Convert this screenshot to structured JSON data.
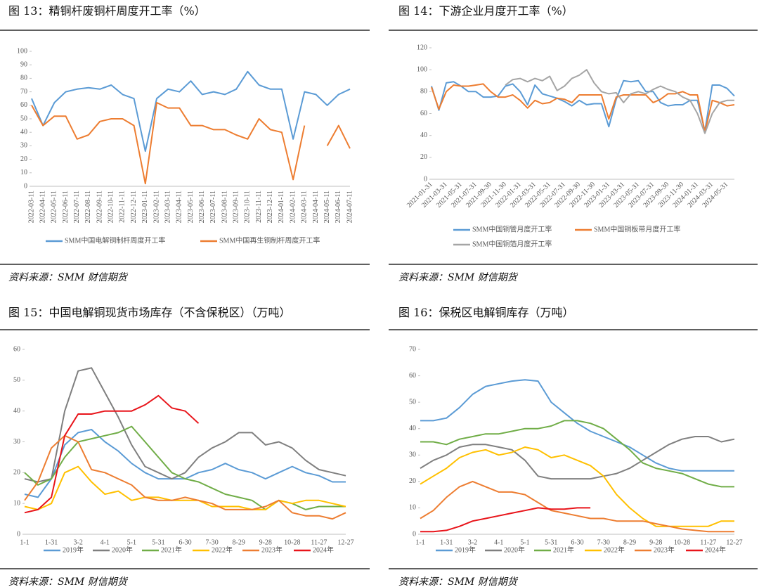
{
  "chart_data": [
    {
      "type": "line",
      "title": "图 13：精铜杆废铜杆周度开工率（%）",
      "source": "资料来源：SMM  财信期货",
      "categories": [
        "2022-03-11",
        "2022-04-11",
        "2022-05-11",
        "2022-06-11",
        "2022-07-11",
        "2022-08-11",
        "2022-09-11",
        "2022-10-11",
        "2022-11-11",
        "2022-12-11",
        "2023-01-11",
        "2023-02-11",
        "2023-03-11",
        "2023-04-11",
        "2023-05-11",
        "2023-06-11",
        "2023-07-11",
        "2023-08-11",
        "2023-09-11",
        "2023-10-11",
        "2023-11-11",
        "2023-12-11",
        "2024-01-11",
        "2024-02-11",
        "2024-03-11",
        "2024-04-11",
        "2024-05-11",
        "2024-06-11",
        "2024-07-11"
      ],
      "series": [
        {
          "name": "SMM中国电解铜制杆周度开工率",
          "color": "#5b9bd5",
          "values": [
            65,
            45,
            62,
            70,
            72,
            73,
            72,
            75,
            68,
            65,
            26,
            65,
            72,
            70,
            78,
            68,
            70,
            68,
            72,
            85,
            75,
            72,
            72,
            35,
            70,
            68,
            60,
            68,
            72
          ]
        },
        {
          "name": "SMM中国再生铜制杆周度开工率",
          "color": "#ed7d31",
          "values": [
            60,
            45,
            52,
            52,
            35,
            38,
            48,
            50,
            50,
            45,
            2,
            62,
            58,
            58,
            45,
            45,
            42,
            42,
            38,
            35,
            50,
            42,
            40,
            5,
            45,
            null,
            30,
            45,
            28
          ]
        }
      ],
      "ylim": [
        0,
        100
      ],
      "yticks": [
        0,
        10,
        20,
        30,
        40,
        50,
        60,
        70,
        80,
        90,
        100
      ],
      "grid": false,
      "legend": "bottom"
    },
    {
      "type": "line",
      "title": "图 14：下游企业月度开工率（%）",
      "source": "资料来源：SMM  财信期货",
      "categories": [
        "2021-01-31",
        null,
        "2021-03-31",
        null,
        "2021-05-31",
        null,
        "2021-07-31",
        null,
        "2021-09-30",
        null,
        "2021-11-30",
        null,
        "2022-01-31",
        null,
        "2022-03-31",
        null,
        "2022-05-31",
        null,
        "2022-07-31",
        null,
        "2022-09-30",
        null,
        "2022-11-30",
        null,
        "2023-01-31",
        null,
        "2023-03-31",
        null,
        "2023-05-31",
        null,
        "2023-07-31",
        null,
        "2023-09-30",
        null,
        "2023-11-30",
        null,
        "2024-01-31",
        null,
        "2024-03-31",
        null,
        "2024-05-31",
        null
      ],
      "series": [
        {
          "name": "SMM中国铜管月度开工率",
          "color": "#5b9bd5",
          "values": [
            85,
            63,
            88,
            89,
            85,
            80,
            80,
            75,
            75,
            76,
            85,
            87,
            80,
            68,
            86,
            78,
            76,
            74,
            71,
            67,
            72,
            68,
            69,
            69,
            48,
            73,
            90,
            89,
            90,
            80,
            80,
            70,
            67,
            68,
            68,
            72,
            72,
            44,
            86,
            86,
            83,
            76
          ]
        },
        {
          "name": "SMM中国铜板带月度开工率",
          "color": "#ed7d31",
          "values": [
            84,
            64,
            80,
            86,
            85,
            85,
            86,
            87,
            80,
            75,
            75,
            77,
            72,
            65,
            72,
            69,
            70,
            74,
            73,
            70,
            77,
            77,
            77,
            77,
            55,
            75,
            77,
            77,
            77,
            77,
            70,
            73,
            78,
            78,
            80,
            77,
            77,
            43,
            72,
            70,
            67,
            68
          ]
        },
        {
          "name": "SMM中国铜箔月度开工率",
          "color": "#a5a5a5",
          "values": [
            null,
            null,
            null,
            null,
            null,
            null,
            null,
            null,
            null,
            null,
            86,
            91,
            92,
            89,
            92,
            90,
            94,
            81,
            85,
            92,
            95,
            100,
            88,
            80,
            78,
            79,
            70,
            78,
            80,
            78,
            82,
            85,
            82,
            80,
            75,
            72,
            60,
            42,
            60,
            70,
            72,
            72
          ]
        }
      ],
      "ylim": [
        0,
        120
      ],
      "yticks": [
        0,
        20,
        40,
        60,
        80,
        100,
        120
      ],
      "grid": false,
      "legend": "bottom"
    },
    {
      "type": "line",
      "title": "图 15：中国电解铜现货市场库存（不含保税区）（万吨）",
      "source": "资料来源：SMM 财信期货",
      "categories": [
        "1-1",
        null,
        "1-31",
        null,
        "3-2",
        null,
        "4-1",
        null,
        "5-1",
        null,
        "5-31",
        null,
        "6-30",
        null,
        "7-30",
        null,
        "8-29",
        null,
        "9-28",
        null,
        "10-28",
        null,
        "11-27",
        null,
        "12-27"
      ],
      "series": [
        {
          "name": "2019年",
          "color": "#5b9bd5",
          "values": [
            13,
            12,
            18,
            29,
            33,
            34,
            30,
            27,
            23,
            20,
            18,
            18,
            18,
            20,
            21,
            23,
            21,
            20,
            18,
            20,
            22,
            20,
            19,
            17,
            17
          ]
        },
        {
          "name": "2020年",
          "color": "#7f7f7f",
          "values": [
            18,
            17,
            18,
            40,
            53,
            54,
            46,
            38,
            29,
            22,
            20,
            18,
            20,
            25,
            28,
            30,
            33,
            33,
            29,
            30,
            28,
            24,
            21,
            20,
            19
          ]
        },
        {
          "name": "2021年",
          "color": "#70ad47",
          "values": [
            20,
            16,
            18,
            25,
            30,
            31,
            32,
            33,
            35,
            30,
            25,
            20,
            18,
            17,
            15,
            13,
            12,
            11,
            8,
            11,
            10,
            8,
            9,
            9,
            9
          ]
        },
        {
          "name": "2022年",
          "color": "#ffc000",
          "values": [
            9,
            8,
            10,
            20,
            22,
            17,
            13,
            14,
            11,
            12,
            12,
            11,
            11,
            11,
            9,
            9,
            9,
            8,
            8,
            11,
            10,
            11,
            11,
            10,
            9
          ]
        },
        {
          "name": "2023年",
          "color": "#ed7d31",
          "values": [
            11,
            17,
            28,
            32,
            30,
            21,
            20,
            18,
            16,
            12,
            11,
            11,
            12,
            11,
            10,
            8,
            8,
            8,
            9,
            11,
            7,
            6,
            6,
            5,
            7
          ]
        },
        {
          "name": "2024年",
          "color": "#e8141a",
          "values": [
            7,
            8,
            12,
            32,
            39,
            39,
            40,
            40,
            40,
            42,
            45,
            41,
            40,
            36,
            null,
            null,
            null,
            null,
            null,
            null,
            null,
            null,
            null,
            null,
            null
          ]
        }
      ],
      "ylim": [
        0,
        60
      ],
      "yticks": [
        0,
        10,
        20,
        30,
        40,
        50,
        60
      ],
      "grid": false,
      "legend": "bottom"
    },
    {
      "type": "line",
      "title": "图 16：保税区电解铜库存（万吨）",
      "source": "资料来源：SMM 财信期货",
      "categories": [
        "1-1",
        null,
        "1-31",
        null,
        "3-2",
        null,
        "4-1",
        null,
        "5-1",
        null,
        "5-31",
        null,
        "6-30",
        null,
        "7-30",
        null,
        "8-29",
        null,
        "9-28",
        null,
        "10-28",
        null,
        "11-27",
        null,
        "12-27"
      ],
      "series": [
        {
          "name": "2019年",
          "color": "#5b9bd5",
          "values": [
            43,
            43,
            44,
            48,
            53,
            56,
            57,
            58,
            58.5,
            58,
            50,
            46,
            42,
            39,
            37,
            35,
            33,
            30,
            27,
            25,
            24,
            24,
            24,
            24,
            24
          ]
        },
        {
          "name": "2020年",
          "color": "#7f7f7f",
          "values": [
            25,
            28,
            30,
            33,
            34,
            34,
            33,
            32,
            28,
            22,
            21,
            21,
            21,
            21,
            22,
            23,
            25,
            28,
            31,
            34,
            36,
            37,
            37,
            35,
            36
          ]
        },
        {
          "name": "2021年",
          "color": "#70ad47",
          "values": [
            35,
            35,
            34,
            36,
            37,
            38,
            38,
            39,
            40,
            40,
            41,
            43,
            43,
            42,
            40,
            36,
            32,
            27,
            25,
            24,
            23,
            21,
            19,
            18,
            18
          ]
        },
        {
          "name": "2022年",
          "color": "#ffc000",
          "values": [
            19,
            22,
            25,
            29,
            31,
            32,
            30,
            31,
            33,
            32,
            29,
            30,
            28,
            26,
            22,
            15,
            10,
            6,
            3,
            3,
            3,
            3,
            3,
            5,
            5
          ]
        },
        {
          "name": "2023年",
          "color": "#ed7d31",
          "values": [
            6,
            9,
            14,
            18,
            20,
            18,
            16,
            16,
            15,
            12,
            9,
            8,
            7,
            6,
            6,
            5,
            5,
            5,
            4,
            3,
            2,
            1.5,
            1,
            1,
            1
          ]
        },
        {
          "name": "2024年",
          "color": "#e8141a",
          "values": [
            1,
            1,
            1.5,
            3,
            5,
            6,
            7,
            8,
            9,
            10,
            9.5,
            9.5,
            10,
            10,
            null,
            null,
            null,
            null,
            null,
            null,
            null,
            null,
            null,
            null,
            null
          ]
        }
      ],
      "ylim": [
        0,
        70
      ],
      "yticks": [
        0,
        10,
        20,
        30,
        40,
        50,
        60,
        70
      ],
      "grid": false,
      "legend": "bottom"
    }
  ]
}
